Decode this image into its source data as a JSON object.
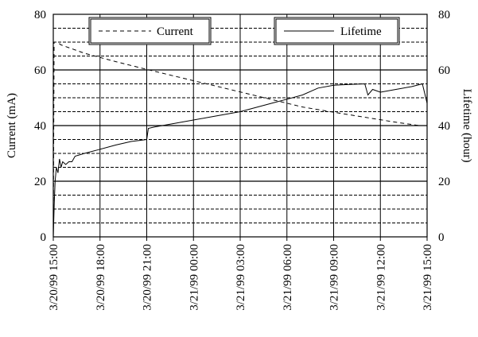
{
  "chart_data": {
    "type": "line",
    "title": "",
    "xlabel": "",
    "ylabel_left": "Current (mA)",
    "ylabel_right": "Lifetime (hour)",
    "x_ticks": [
      "3/20/99 15:00",
      "3/20/99 18:00",
      "3/20/99 21:00",
      "3/21/99 00:00",
      "3/21/99 03:00",
      "3/21/99 06:00",
      "3/21/99 09:00",
      "3/21/99 12:00",
      "3/21/99 15:00"
    ],
    "x_range_hours": [
      0,
      24
    ],
    "ylim_left": [
      0,
      80
    ],
    "ylim_right": [
      0,
      80
    ],
    "y_ticks_left": [
      "0",
      "20",
      "40",
      "60",
      "80"
    ],
    "y_ticks_right": [
      "0",
      "20",
      "40",
      "60",
      "80"
    ],
    "grid": {
      "major": true,
      "minor_dashed": true
    },
    "legend": [
      "Current",
      "Lifetime"
    ],
    "series": [
      {
        "name": "Current",
        "axis": "left",
        "style": "dashed",
        "x_hours": [
          0.0,
          0.05,
          0.1,
          0.25,
          0.5,
          2,
          4,
          6,
          8,
          10,
          12,
          14,
          16,
          18,
          20,
          22,
          23.5,
          24
        ],
        "values": [
          0,
          70,
          70,
          70,
          69,
          66,
          63,
          60.2,
          57.5,
          54.8,
          52.1,
          49.4,
          46.7,
          44.8,
          43,
          41.2,
          40,
          40
        ]
      },
      {
        "name": "Lifetime",
        "axis": "right",
        "style": "solid",
        "x_hours": [
          0.0,
          0.06,
          0.12,
          0.2,
          0.3,
          0.4,
          0.5,
          0.6,
          0.8,
          1.0,
          1.2,
          1.4,
          2,
          3,
          4,
          5,
          6,
          6.05,
          6.1,
          6.5,
          8,
          10,
          12,
          14,
          15,
          16,
          17,
          18,
          19,
          20,
          20.2,
          20.5,
          21,
          22,
          23,
          23.7,
          24
        ],
        "values": [
          0,
          12,
          20,
          25,
          23,
          28,
          25,
          27,
          26,
          27,
          27,
          29,
          30,
          31.5,
          33,
          34.3,
          35,
          37,
          39,
          39.5,
          41,
          43,
          45,
          48,
          49.5,
          51,
          53.5,
          54.5,
          54.8,
          55,
          51,
          53,
          52,
          53,
          54,
          55,
          48
        ]
      }
    ]
  }
}
